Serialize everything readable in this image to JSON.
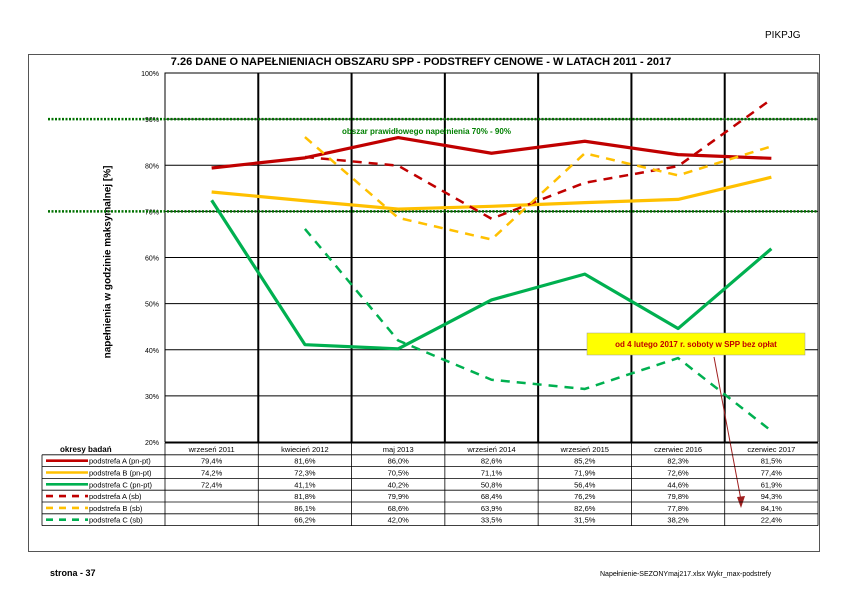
{
  "header": {
    "corner_label": "PIKPJG"
  },
  "footer": {
    "page_label": "strona - 37",
    "source_file": "Napełnienie-SEZONYmaj217.xlsx Wykr_max-podstrefy"
  },
  "chart_data": {
    "type": "line",
    "title": "7.26 DANE O NAPEŁNIENIACH OBSZARU SPP - PODSTREFY CENOWE -  W LATACH 2011 - 2017",
    "ylabel": "napełnienia w godzinie maksymalnej [%]",
    "ylim": [
      20,
      100
    ],
    "yticks": [
      "20%",
      "30%",
      "40%",
      "50%",
      "60%",
      "70%",
      "80%",
      "90%",
      "100%"
    ],
    "grid": true,
    "categories": [
      "wrzeseń 2011",
      "kwiecień 2012",
      "maj 2013",
      "wrzesień 2014",
      "wrzesień 2015",
      "czerwiec 2016",
      "czerwiec 2017"
    ],
    "table_header": "okresy badań",
    "reference_lines": [
      70,
      90
    ],
    "reference_label": "obszar prawidłowego napełnienia 70% - 90%",
    "annotation": "od 4 lutego 2017 r. soboty w SPP bez opłat",
    "series": [
      {
        "name": "podstrefa A (pn-pt)",
        "color": "#c00000",
        "dash": false,
        "values": [
          79.4,
          81.6,
          86.0,
          82.6,
          85.2,
          82.3,
          81.5
        ],
        "labels": [
          "79,4%",
          "81,6%",
          "86,0%",
          "82,6%",
          "85,2%",
          "82,3%",
          "81,5%"
        ]
      },
      {
        "name": "podstrefa B (pn-pt)",
        "color": "#ffc000",
        "dash": false,
        "values": [
          74.2,
          72.3,
          70.5,
          71.1,
          71.9,
          72.6,
          77.4
        ],
        "labels": [
          "74,2%",
          "72,3%",
          "70,5%",
          "71,1%",
          "71,9%",
          "72,6%",
          "77,4%"
        ]
      },
      {
        "name": "podstrefa C (pn-pt)",
        "color": "#00b050",
        "dash": false,
        "values": [
          72.4,
          41.1,
          40.2,
          50.8,
          56.4,
          44.6,
          61.9
        ],
        "labels": [
          "72,4%",
          "41,1%",
          "40,2%",
          "50,8%",
          "56,4%",
          "44,6%",
          "61,9%"
        ]
      },
      {
        "name": "podstrefa A (sb)",
        "color": "#c00000",
        "dash": true,
        "values": [
          null,
          81.8,
          79.9,
          68.4,
          76.2,
          79.8,
          94.3
        ],
        "labels": [
          "",
          "81,8%",
          "79,9%",
          "68,4%",
          "76,2%",
          "79,8%",
          "94,3%"
        ]
      },
      {
        "name": "podstrefa B (sb)",
        "color": "#ffc000",
        "dash": true,
        "values": [
          null,
          86.1,
          68.6,
          63.9,
          82.6,
          77.8,
          84.1
        ],
        "labels": [
          "",
          "86,1%",
          "68,6%",
          "63,9%",
          "82,6%",
          "77,8%",
          "84,1%"
        ]
      },
      {
        "name": "podstrefa C (sb)",
        "color": "#00b050",
        "dash": true,
        "values": [
          null,
          66.2,
          42.0,
          33.5,
          31.5,
          38.2,
          22.4
        ],
        "labels": [
          "",
          "66,2%",
          "42,0%",
          "33,5%",
          "31,5%",
          "38,2%",
          "22,4%"
        ]
      }
    ]
  }
}
